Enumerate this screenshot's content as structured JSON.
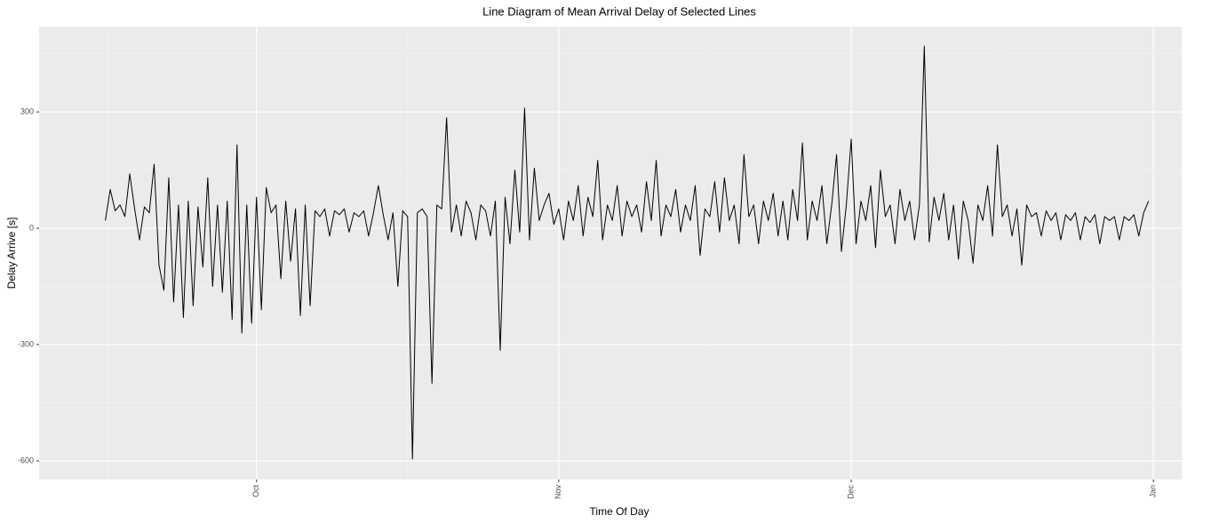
{
  "chart_data": {
    "type": "line",
    "title": "Line Diagram of Mean Arrival Delay of Selected Lines",
    "xlabel": "Time Of Day",
    "ylabel": "Delay Arrive [s]",
    "color": "#000000",
    "grid": true,
    "xlim": [
      -22.3,
      94.9
    ],
    "ylim": [
      -648,
      520
    ],
    "xticks": [
      {
        "value": 0,
        "label": "Oct"
      },
      {
        "value": 31,
        "label": "Nov"
      },
      {
        "value": 61,
        "label": "Dec"
      },
      {
        "value": 92,
        "label": "Jan"
      }
    ],
    "x_minor_grid": [
      -15.2,
      15.5,
      45.9,
      76.3
    ],
    "yticks": [
      -600,
      -300,
      0,
      300
    ],
    "y_minor_grid": [
      -450,
      -150,
      150,
      450
    ],
    "x": [
      -15.5,
      -15,
      -14.5,
      -14,
      -13.5,
      -13,
      -12.5,
      -12,
      -11.5,
      -11,
      -10.5,
      -10,
      -9.5,
      -9,
      -8.5,
      -8,
      -7.5,
      -7,
      -6.5,
      -6,
      -5.5,
      -5,
      -4.5,
      -4,
      -3.5,
      -3,
      -2.5,
      -2,
      -1.5,
      -1,
      -0.5,
      0,
      0.5,
      1,
      1.5,
      2,
      2.5,
      3,
      3.5,
      4,
      4.5,
      5,
      5.5,
      6,
      6.5,
      7,
      7.5,
      8,
      8.5,
      9,
      9.5,
      10,
      10.5,
      11,
      11.5,
      12,
      12.5,
      13,
      13.5,
      14,
      14.5,
      15,
      15.5,
      16,
      16.5,
      17,
      17.5,
      18,
      18.5,
      19,
      19.5,
      20,
      20.5,
      21,
      21.5,
      22,
      22.5,
      23,
      23.5,
      24,
      24.5,
      25,
      25.5,
      26,
      26.5,
      27,
      27.5,
      28,
      28.5,
      29,
      29.5,
      30,
      30.5,
      31,
      31.5,
      32,
      32.5,
      33,
      33.5,
      34,
      34.5,
      35,
      35.5,
      36,
      36.5,
      37,
      37.5,
      38,
      38.5,
      39,
      39.5,
      40,
      40.5,
      41,
      41.5,
      42,
      42.5,
      43,
      43.5,
      44,
      44.5,
      45,
      45.5,
      46,
      46.5,
      47,
      47.5,
      48,
      48.5,
      49,
      49.5,
      50,
      50.5,
      51,
      51.5,
      52,
      52.5,
      53,
      53.5,
      54,
      54.5,
      55,
      55.5,
      56,
      56.5,
      57,
      57.5,
      58,
      58.5,
      59,
      59.5,
      60,
      60.5,
      61,
      61.5,
      62,
      62.5,
      63,
      63.5,
      64,
      64.5,
      65,
      65.5,
      66,
      66.5,
      67,
      67.5,
      68,
      68.5,
      69,
      69.5,
      70,
      70.5,
      71,
      71.5,
      72,
      72.5,
      73,
      73.5,
      74,
      74.5,
      75,
      75.5,
      76,
      76.5,
      77,
      77.5,
      78,
      78.5,
      79,
      79.5,
      80,
      80.5,
      81,
      81.5,
      82,
      82.5,
      83,
      83.5,
      84,
      84.5,
      85,
      85.5,
      86,
      86.5,
      87,
      87.5,
      88,
      88.5,
      89,
      89.5,
      90,
      90.5,
      91,
      91.5
    ],
    "values": [
      20,
      100,
      45,
      60,
      30,
      140,
      50,
      -30,
      55,
      40,
      165,
      -95,
      -160,
      130,
      -190,
      60,
      -230,
      70,
      -200,
      55,
      -100,
      130,
      -150,
      60,
      -165,
      70,
      -235,
      215,
      -270,
      60,
      -245,
      80,
      -210,
      105,
      40,
      60,
      -130,
      70,
      -85,
      50,
      -225,
      60,
      -200,
      45,
      30,
      50,
      -20,
      45,
      35,
      50,
      -10,
      40,
      30,
      45,
      -20,
      40,
      110,
      35,
      -30,
      40,
      -150,
      45,
      30,
      -595,
      40,
      50,
      30,
      -400,
      60,
      50,
      285,
      -10,
      60,
      -20,
      70,
      40,
      -30,
      60,
      45,
      -20,
      70,
      -315,
      80,
      -40,
      150,
      -10,
      310,
      -30,
      155,
      20,
      60,
      90,
      10,
      50,
      -30,
      70,
      20,
      110,
      -20,
      80,
      30,
      175,
      -30,
      60,
      20,
      110,
      -20,
      70,
      30,
      60,
      -10,
      120,
      20,
      175,
      -20,
      60,
      30,
      100,
      -10,
      60,
      20,
      110,
      -70,
      50,
      30,
      120,
      -10,
      130,
      20,
      60,
      -40,
      190,
      30,
      60,
      -40,
      70,
      20,
      90,
      -20,
      70,
      -30,
      100,
      20,
      220,
      -30,
      70,
      20,
      110,
      -40,
      60,
      190,
      -60,
      60,
      230,
      -40,
      70,
      20,
      110,
      -50,
      150,
      30,
      60,
      -40,
      100,
      20,
      70,
      -30,
      60,
      470,
      -35,
      80,
      20,
      90,
      -30,
      60,
      -80,
      70,
      20,
      -90,
      60,
      20,
      110,
      -20,
      215,
      30,
      60,
      -20,
      50,
      -95,
      60,
      30,
      40,
      -20,
      45,
      20,
      40,
      -30,
      35,
      20,
      40,
      -30,
      30,
      15,
      35,
      -40,
      30,
      20,
      30,
      -30,
      30,
      20,
      35,
      -20,
      40,
      70
    ]
  }
}
